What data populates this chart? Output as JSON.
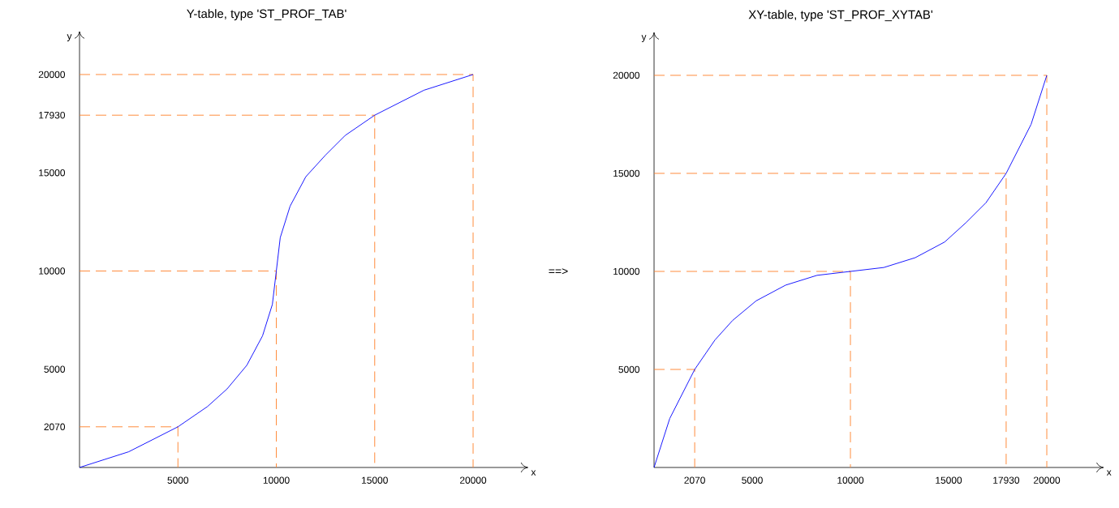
{
  "chart_data": [
    {
      "type": "line",
      "title": "Y-table, type 'ST_PROF_TAB'",
      "xlabel": "x",
      "ylabel": "y",
      "xlim": [
        0,
        22800
      ],
      "ylim": [
        0,
        22200
      ],
      "xticks": [
        5000,
        10000,
        15000,
        20000
      ],
      "yticks": [
        2070,
        5000,
        10000,
        15000,
        17930,
        20000
      ],
      "series": [
        {
          "color": "#ff7f27",
          "line_style": "dashed",
          "x": [
            0,
            5000,
            5000
          ],
          "values": [
            2070,
            2070,
            0
          ]
        },
        {
          "color": "#ff7f27",
          "line_style": "dashed",
          "x": [
            0,
            10000,
            10000
          ],
          "values": [
            10000,
            10000,
            0
          ]
        },
        {
          "color": "#ff7f27",
          "line_style": "dashed",
          "x": [
            0,
            15000,
            15000
          ],
          "values": [
            17930,
            17930,
            0
          ]
        },
        {
          "color": "#ff7f27",
          "line_style": "dashed",
          "x": [
            0,
            20000,
            20000
          ],
          "values": [
            20000,
            20000,
            0
          ]
        },
        {
          "color": "#0000ff",
          "line_style": "solid",
          "x": [
            0,
            2500,
            5000,
            6500,
            7500,
            8500,
            9300,
            9800,
            10000,
            10200,
            10700,
            11500,
            12500,
            13500,
            15000,
            17500,
            20000
          ],
          "values": [
            0,
            800,
            2070,
            3100,
            4000,
            5200,
            6700,
            8300,
            10000,
            11700,
            13300,
            14800,
            15900,
            16900,
            17930,
            19200,
            20000
          ]
        }
      ]
    },
    {
      "type": "line",
      "title": "XY-table, type 'ST_PROF_XYTAB'",
      "xlabel": "x",
      "ylabel": "y",
      "xlim": [
        0,
        22900
      ],
      "ylim": [
        0,
        22200
      ],
      "xticks": [
        2070,
        5000,
        10000,
        15000,
        17930,
        20000
      ],
      "yticks": [
        5000,
        10000,
        15000,
        20000
      ],
      "annotations": [
        "==>"
      ],
      "series": [
        {
          "color": "#ff7f27",
          "line_style": "dashed",
          "x": [
            0,
            2070,
            2070
          ],
          "values": [
            5000,
            5000,
            0
          ]
        },
        {
          "color": "#ff7f27",
          "line_style": "dashed",
          "x": [
            0,
            10000,
            10000
          ],
          "values": [
            10000,
            10000,
            0
          ]
        },
        {
          "color": "#ff7f27",
          "line_style": "dashed",
          "x": [
            0,
            17930,
            17930
          ],
          "values": [
            15000,
            15000,
            0
          ]
        },
        {
          "color": "#ff7f27",
          "line_style": "dashed",
          "x": [
            0,
            20000,
            20000
          ],
          "values": [
            20000,
            20000,
            0
          ]
        },
        {
          "color": "#0000ff",
          "line_style": "solid",
          "x": [
            0,
            800,
            2070,
            3100,
            4000,
            5200,
            6700,
            8300,
            10000,
            11700,
            13300,
            14800,
            15900,
            16900,
            17930,
            19200,
            20000
          ],
          "values": [
            0,
            2500,
            5000,
            6500,
            7500,
            8500,
            9300,
            9800,
            10000,
            10200,
            10700,
            11500,
            12500,
            13500,
            15000,
            17500,
            20000
          ]
        }
      ]
    }
  ]
}
